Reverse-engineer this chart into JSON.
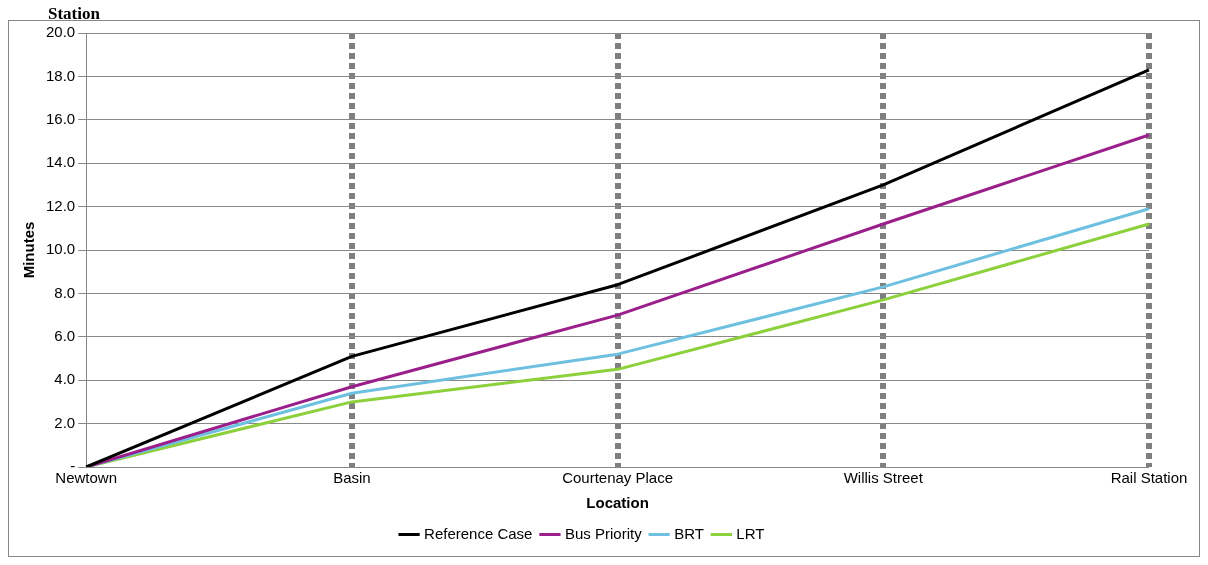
{
  "chart_data": {
    "type": "line",
    "title": "Station",
    "xlabel": "Location",
    "ylabel": "Minutes",
    "categories": [
      "Newtown",
      "Basin",
      "Courtenay Place",
      "Willis Street",
      "Rail Station"
    ],
    "series": [
      {
        "name": "Reference Case",
        "color": "#000000",
        "values": [
          0,
          5.1,
          8.4,
          13.0,
          18.3
        ]
      },
      {
        "name": "Bus Priority",
        "color": "#9b1f8a",
        "values": [
          0,
          3.7,
          7.0,
          11.2,
          15.3
        ]
      },
      {
        "name": "BRT",
        "color": "#6ec0e0",
        "values": [
          0,
          3.4,
          5.2,
          8.3,
          11.9
        ]
      },
      {
        "name": "LRT",
        "color": "#8cd03c",
        "values": [
          0,
          3.0,
          4.5,
          7.7,
          11.2
        ]
      }
    ],
    "ylim": [
      0,
      20
    ],
    "yticks": [
      {
        "value": 0,
        "label": "-"
      },
      {
        "value": 2,
        "label": "2.0"
      },
      {
        "value": 4,
        "label": "4.0"
      },
      {
        "value": 6,
        "label": "6.0"
      },
      {
        "value": 8,
        "label": "8.0"
      },
      {
        "value": 10,
        "label": "10.0"
      },
      {
        "value": 12,
        "label": "12.0"
      },
      {
        "value": 14,
        "label": "14.0"
      },
      {
        "value": 16,
        "label": "16.0"
      },
      {
        "value": 18,
        "label": "18.0"
      },
      {
        "value": 20,
        "label": "20.0"
      }
    ],
    "grid": true,
    "legend": "bottom",
    "marker": "none",
    "line_style": "solid"
  }
}
